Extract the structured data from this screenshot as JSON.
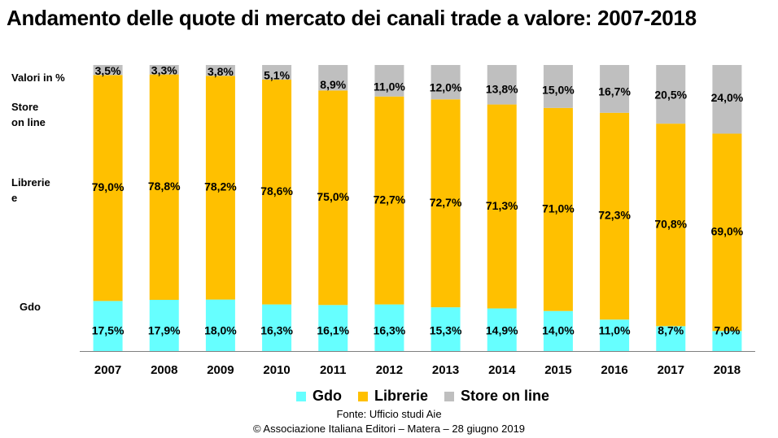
{
  "title": "Andamento delle quote di mercato dei canali trade a valore: 2007-2018",
  "unit_label": "Valori in %",
  "side_labels": {
    "store": [
      "Store",
      "on line"
    ],
    "librerie": [
      "Librerie",
      "e"
    ],
    "gdo": "Gdo"
  },
  "legend": [
    {
      "name": "Gdo",
      "color": "#66ffff"
    },
    {
      "name": "Librerie",
      "color": "#ffc000"
    },
    {
      "name": "Store on line",
      "color": "#bfbfbf"
    }
  ],
  "footer": {
    "source": "Fonte:  Ufficio studi Aie",
    "copyright": "© Associazione Italiana Editori – Matera – 28 giugno 2019"
  },
  "chart_data": {
    "type": "bar",
    "stacked": true,
    "title": "Andamento delle quote di mercato dei canali trade a valore: 2007-2018",
    "categories": [
      "2007",
      "2008",
      "2009",
      "2010",
      "2011",
      "2012",
      "2013",
      "2014",
      "2015",
      "2016",
      "2017",
      "2018"
    ],
    "series": [
      {
        "name": "Gdo",
        "color": "#66ffff",
        "values": [
          17.5,
          17.9,
          18.0,
          16.3,
          16.1,
          16.3,
          15.3,
          14.9,
          14.0,
          11.0,
          8.7,
          7.0
        ],
        "labels": [
          "17,5%",
          "17,9%",
          "18,0%",
          "16,3%",
          "16,1%",
          "16,3%",
          "15,3%",
          "14,9%",
          "14,0%",
          "11,0%",
          "8,7%",
          "7,0%"
        ]
      },
      {
        "name": "Librerie",
        "color": "#ffc000",
        "values": [
          79.0,
          78.8,
          78.2,
          78.6,
          75.0,
          72.7,
          72.7,
          71.3,
          71.0,
          72.3,
          70.8,
          69.0
        ],
        "labels": [
          "79,0%",
          "78,8%",
          "78,2%",
          "78,6%",
          "75,0%",
          "72,7%",
          "72,7%",
          "71,3%",
          "71,0%",
          "72,3%",
          "70,8%",
          "69,0%"
        ]
      },
      {
        "name": "Store on line",
        "color": "#bfbfbf",
        "values": [
          3.5,
          3.3,
          3.8,
          5.1,
          8.9,
          11.0,
          12.0,
          13.8,
          15.0,
          16.7,
          20.5,
          24.0
        ],
        "labels": [
          "3,5%",
          "3,3%",
          "3,8%",
          "5,1%",
          "8,9%",
          "11,0%",
          "12,0%",
          "13,8%",
          "15,0%",
          "16,7%",
          "20,5%",
          "24,0%"
        ]
      }
    ],
    "ylim": [
      0,
      100
    ],
    "ylabel": "Valori in %",
    "xlabel": "",
    "grid": false,
    "legend_position": "bottom"
  }
}
